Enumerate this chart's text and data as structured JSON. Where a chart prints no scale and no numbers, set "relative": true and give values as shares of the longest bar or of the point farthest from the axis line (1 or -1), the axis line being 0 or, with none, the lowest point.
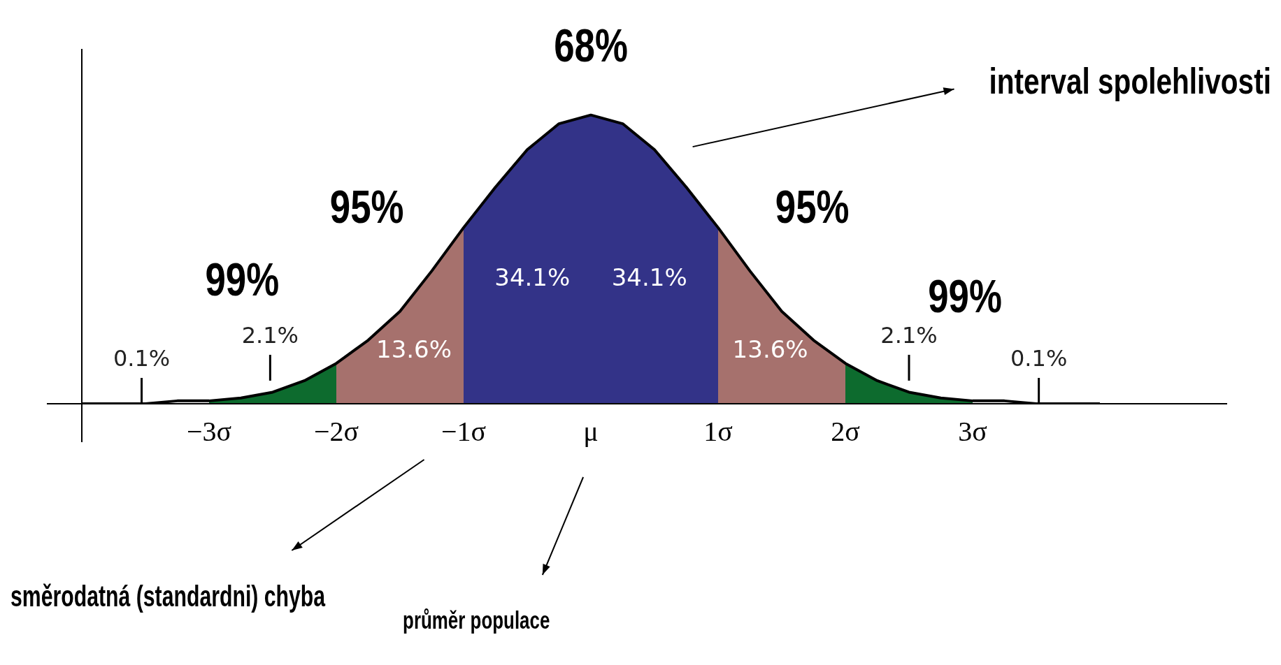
{
  "chart_data": {
    "type": "area",
    "relative": true,
    "legend": false,
    "grid": false,
    "xlim": [
      -4,
      5
    ],
    "xticks": [
      {
        "value": -3,
        "label": "−3σ"
      },
      {
        "value": -2,
        "label": "−2σ"
      },
      {
        "value": -1,
        "label": "−1σ"
      },
      {
        "value": 0,
        "label": "μ"
      },
      {
        "value": 1,
        "label": "1σ"
      },
      {
        "value": 2,
        "label": "2σ"
      },
      {
        "value": 3,
        "label": "3σ"
      }
    ],
    "series": [
      {
        "color": "#0d6b2e",
        "x": [
          -3,
          -2.75,
          -2.5,
          -2.25,
          -2
        ],
        "values": [
          0.01,
          0.02,
          0.04,
          0.08,
          0.14
        ]
      },
      {
        "color": "#a6716d",
        "x": [
          -2,
          -1.75,
          -1.5,
          -1.25,
          -1
        ],
        "values": [
          0.14,
          0.22,
          0.32,
          0.46,
          0.61
        ]
      },
      {
        "color": "#333388",
        "x": [
          -1,
          -0.75,
          -0.5,
          -0.25,
          0
        ],
        "values": [
          0.61,
          0.75,
          0.88,
          0.97,
          1
        ]
      },
      {
        "color": "#333388",
        "x": [
          0,
          0.25,
          0.5,
          0.75,
          1
        ],
        "values": [
          1,
          0.97,
          0.88,
          0.75,
          0.61
        ]
      },
      {
        "color": "#a6716d",
        "x": [
          1,
          1.25,
          1.5,
          1.75,
          2
        ],
        "values": [
          0.61,
          0.46,
          0.32,
          0.22,
          0.14
        ]
      },
      {
        "color": "#0d6b2e",
        "x": [
          2,
          2.25,
          2.5,
          2.75,
          3
        ],
        "values": [
          0.14,
          0.08,
          0.04,
          0.02,
          0.01
        ]
      },
      {
        "type": "line",
        "color": "#000000",
        "x": [
          -4,
          -3.75,
          -3.5,
          -3.25,
          -3,
          -2.75,
          -2.5,
          -2.25,
          -2,
          -1.75,
          -1.5,
          -1.25,
          -1,
          -0.75,
          -0.5,
          -0.25,
          0,
          0.25,
          0.5,
          0.75,
          1,
          1.25,
          1.5,
          1.75,
          2,
          2.25,
          2.5,
          2.75,
          3,
          3.25,
          3.5,
          3.75,
          4
        ],
        "values": [
          0,
          0,
          0,
          0.01,
          0.01,
          0.02,
          0.04,
          0.08,
          0.14,
          0.22,
          0.32,
          0.46,
          0.61,
          0.75,
          0.88,
          0.97,
          1,
          0.97,
          0.88,
          0.75,
          0.61,
          0.46,
          0.32,
          0.22,
          0.14,
          0.08,
          0.04,
          0.02,
          0.01,
          0.01,
          0,
          0,
          0
        ]
      }
    ],
    "annotations": [
      "interval spolehlivosti",
      "směrodatná (standardni) chyba",
      "průměr populace",
      "68%",
      "95%",
      "95%",
      "99%",
      "99%",
      "34.1%",
      "34.1%",
      "13.6%",
      "13.6%",
      "2.1%",
      "2.1%",
      "0.1%",
      "0.1%"
    ]
  }
}
